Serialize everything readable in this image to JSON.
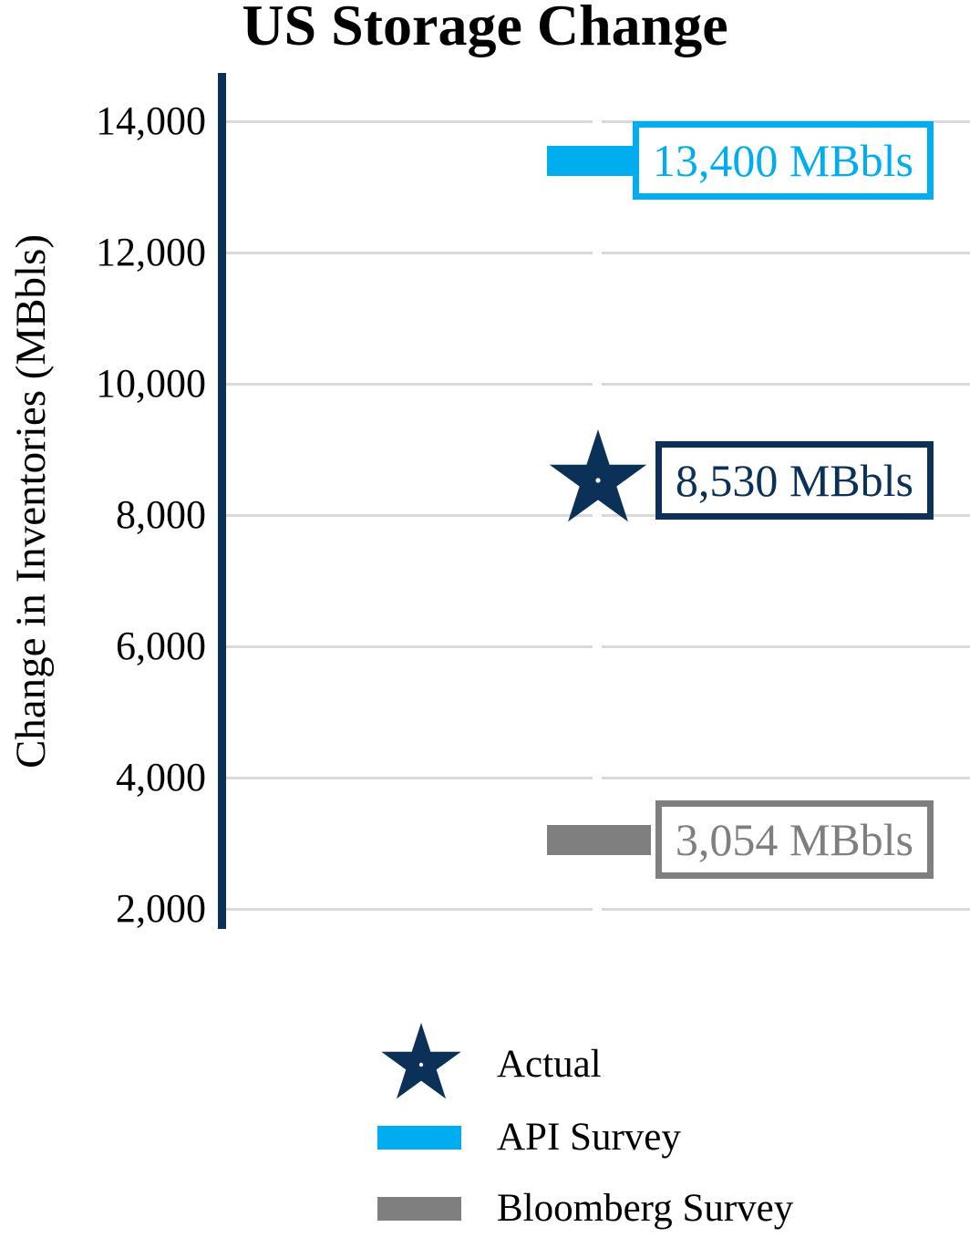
{
  "chart_data": {
    "type": "scatter",
    "title": "US Storage Change",
    "ylabel": "Change in Inventories (MBbls)",
    "xlabel": "",
    "ylim": [
      1700,
      14750
    ],
    "yticks": [
      2000,
      4000,
      6000,
      8000,
      10000,
      12000,
      14000
    ],
    "ytick_labels": [
      "2,000",
      "4,000",
      "6,000",
      "8,000",
      "10,000",
      "12,000",
      "14,000"
    ],
    "grid": true,
    "gridline_color": "#D9D9D9",
    "axis_color": "#0C3158",
    "legend_position": "bottom",
    "series": [
      {
        "name": "Actual",
        "marker": "star",
        "color": "#0C3158",
        "value": 8530,
        "data_label": "8,530 MBbls"
      },
      {
        "name": "API Survey",
        "marker": "bar",
        "color": "#00AEEF",
        "value": 13400,
        "data_label": "13,400 MBbls"
      },
      {
        "name": "Bloomberg Survey",
        "marker": "bar",
        "color": "#7F7F7F",
        "value": 3054,
        "data_label": "3,054 MBbls"
      }
    ],
    "legend": [
      {
        "label": "Actual",
        "swatch": "star",
        "color": "#0C3158"
      },
      {
        "label": "API Survey",
        "swatch": "bar",
        "color": "#00AEEF"
      },
      {
        "label": "Bloomberg Survey",
        "swatch": "bar",
        "color": "#7F7F7F"
      }
    ]
  }
}
